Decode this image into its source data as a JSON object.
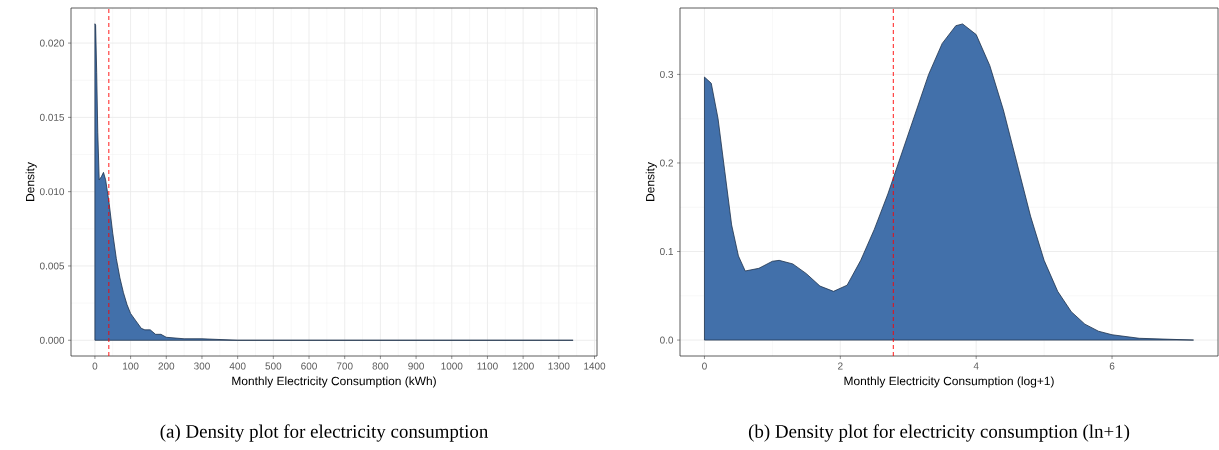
{
  "chart_data": [
    {
      "type": "area",
      "title": "(a) Density plot for electricity consumption",
      "xlabel": "Monthly Electricity Consumption (kWh)",
      "ylabel": "Density",
      "x": [
        0,
        2,
        5,
        8,
        12,
        18,
        24,
        30,
        40,
        50,
        60,
        70,
        80,
        90,
        100,
        115,
        130,
        140,
        155,
        170,
        185,
        200,
        250,
        300,
        400,
        600,
        900,
        1340
      ],
      "series": [
        {
          "color": "#4270aa",
          "values": [
            0.0213,
            0.0212,
            0.018,
            0.014,
            0.0108,
            0.011,
            0.0113,
            0.0108,
            0.0092,
            0.0072,
            0.0055,
            0.0042,
            0.0032,
            0.0024,
            0.0018,
            0.0013,
            0.0008,
            0.0007,
            0.0007,
            0.0004,
            0.0004,
            0.0002,
            0.0001,
            0.0001,
            0,
            0,
            0,
            0
          ]
        }
      ],
      "xlim": [
        -67,
        1407
      ],
      "ylim": [
        -0.00106,
        0.02236
      ],
      "xticks": [
        0,
        100,
        200,
        300,
        400,
        500,
        600,
        700,
        800,
        900,
        1000,
        1100,
        1200,
        1300,
        1400
      ],
      "yticks": [
        {
          "value": 0,
          "label": "0.000"
        },
        {
          "value": 0.005,
          "label": "0.005"
        },
        {
          "value": 0.01,
          "label": "0.010"
        },
        {
          "value": 0.015,
          "label": "0.015"
        },
        {
          "value": 0.02,
          "label": "0.020"
        }
      ],
      "grid": true,
      "ref_lines": [
        {
          "axis": "x",
          "value": 39,
          "color": "#ff0000",
          "line_style": "dashed"
        }
      ]
    },
    {
      "type": "area",
      "title": "(b) Density plot for electricity consumption (ln+1)",
      "xlabel": "Monthly Electricity Consumption (log+1)",
      "ylabel": "Density",
      "x": [
        0,
        0.1,
        0.2,
        0.3,
        0.4,
        0.5,
        0.6,
        0.8,
        1.0,
        1.1,
        1.3,
        1.5,
        1.7,
        1.9,
        2.1,
        2.3,
        2.5,
        2.7,
        2.9,
        3.1,
        3.3,
        3.5,
        3.7,
        3.8,
        4.0,
        4.2,
        4.4,
        4.6,
        4.8,
        5.0,
        5.2,
        5.4,
        5.6,
        5.8,
        6.0,
        6.4,
        7.2
      ],
      "series": [
        {
          "color": "#4270aa",
          "values": [
            0.297,
            0.29,
            0.25,
            0.19,
            0.13,
            0.095,
            0.078,
            0.081,
            0.089,
            0.09,
            0.086,
            0.075,
            0.061,
            0.055,
            0.062,
            0.09,
            0.125,
            0.165,
            0.21,
            0.255,
            0.3,
            0.335,
            0.355,
            0.357,
            0.345,
            0.31,
            0.26,
            0.2,
            0.14,
            0.09,
            0.055,
            0.032,
            0.018,
            0.01,
            0.006,
            0.002,
            0
          ]
        }
      ],
      "xlim": [
        -0.36,
        7.56
      ],
      "ylim": [
        -0.018,
        0.375
      ],
      "xticks": [
        0,
        2,
        4,
        6
      ],
      "yticks": [
        {
          "value": 0,
          "label": "0.0"
        },
        {
          "value": 0.1,
          "label": "0.1"
        },
        {
          "value": 0.2,
          "label": "0.2"
        },
        {
          "value": 0.3,
          "label": "0.3"
        }
      ],
      "grid": true,
      "ref_lines": [
        {
          "axis": "x",
          "value": 2.78,
          "color": "#ff0000",
          "line_style": "dashed"
        }
      ]
    }
  ]
}
